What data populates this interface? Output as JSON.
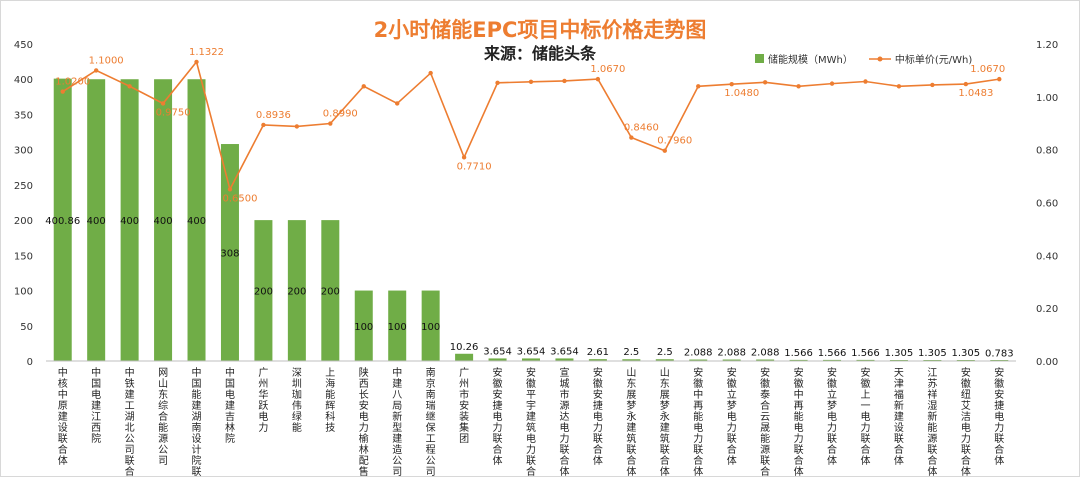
{
  "chart_data": {
    "type": "bar+line",
    "title": "2小时储能EPC项目中标价格走势图",
    "subtitle": "来源：储能头条",
    "categories": [
      "中核中原建设联合体",
      "中国电建江西院",
      "中铁建工湖北公司联合体",
      "网山东综合能源公司",
      "中国能建湖南设计院联合体",
      "中国电建吉林院",
      "广州华跃电力",
      "深圳珈伟绿能",
      "上海能辉科技",
      "陕西长安电力榆林配售电",
      "中建八局新型建造公司",
      "南京南瑞继保工程公司",
      "广州市安装集团",
      "安徽安捷电力联合体",
      "安徽平宇建筑电力联合体",
      "宣城市源达电力联合体",
      "安徽安捷电力联合体",
      "山东展梦永建筑联合体",
      "山东展梦永建筑联合体",
      "安徽中再能电力联合体",
      "安徽立梦电力联合体",
      "安徽泰合云晟能源联合体",
      "安徽中再能电力联合体",
      "安徽立梦电力联合体",
      "安徽上一电力联合体",
      "天津福新建设联合体",
      "江苏祥湿新能源联合体",
      "安徽纽艾洁电力联合体",
      "安徽安捷电力联合体"
    ],
    "series": [
      {
        "name": "储能规模（MWh）",
        "type": "bar",
        "axis": "left",
        "color": "#70ad47",
        "values": [
          400.86,
          400,
          400,
          400,
          400,
          308,
          200,
          200,
          200,
          100,
          100,
          100,
          10.26,
          3.654,
          3.654,
          3.654,
          2.61,
          2.5,
          2.5,
          2.088,
          2.088,
          2.088,
          1.566,
          1.566,
          1.566,
          1.305,
          1.305,
          1.305,
          0.783
        ],
        "labels": [
          "400.86",
          "400",
          "400",
          "400",
          "400",
          "308",
          "200",
          "200",
          "200",
          "100",
          "100",
          "100",
          "10.26",
          "3.654",
          "3.654",
          "3.654",
          "2.61",
          "2.5",
          "2.5",
          "2.088",
          "2.088",
          "2.088",
          "1.566",
          "1.566",
          "1.566",
          "1.305",
          "1.305",
          "1.305",
          "0.783"
        ]
      },
      {
        "name": "中标单价(元/Wh)",
        "type": "line",
        "axis": "right",
        "color": "#ed7d31",
        "values": [
          1.02,
          1.1,
          1.04,
          0.975,
          1.1322,
          0.65,
          0.8936,
          0.888,
          0.899,
          1.04,
          0.975,
          1.09,
          0.771,
          1.053,
          1.057,
          1.06,
          1.067,
          0.846,
          0.796,
          1.04,
          1.048,
          1.055,
          1.04,
          1.05,
          1.058,
          1.04,
          1.045,
          1.0483,
          1.067
        ],
        "labels": [
          "1.0200",
          "1.1000",
          "",
          "0.9750",
          "1.1322",
          "0.6500",
          "0.8936",
          "",
          "0.8990",
          "",
          "",
          "",
          "0.7710",
          "",
          "",
          "",
          "1.0670",
          "0.8460",
          "0.7960",
          "",
          "1.0480",
          "",
          "",
          "",
          "",
          "",
          "",
          "1.0483",
          "1.0670"
        ]
      }
    ],
    "y_left": {
      "min": 0,
      "max": 450,
      "ticks": [
        "0",
        "50",
        "100",
        "150",
        "200",
        "250",
        "300",
        "350",
        "400",
        "450"
      ]
    },
    "y_right": {
      "min": 0,
      "max": 1.2,
      "ticks": [
        "0.00",
        "0.20",
        "0.40",
        "0.60",
        "0.80",
        "1.00",
        "1.20"
      ]
    },
    "grid": false,
    "legend_position": "top-right"
  }
}
